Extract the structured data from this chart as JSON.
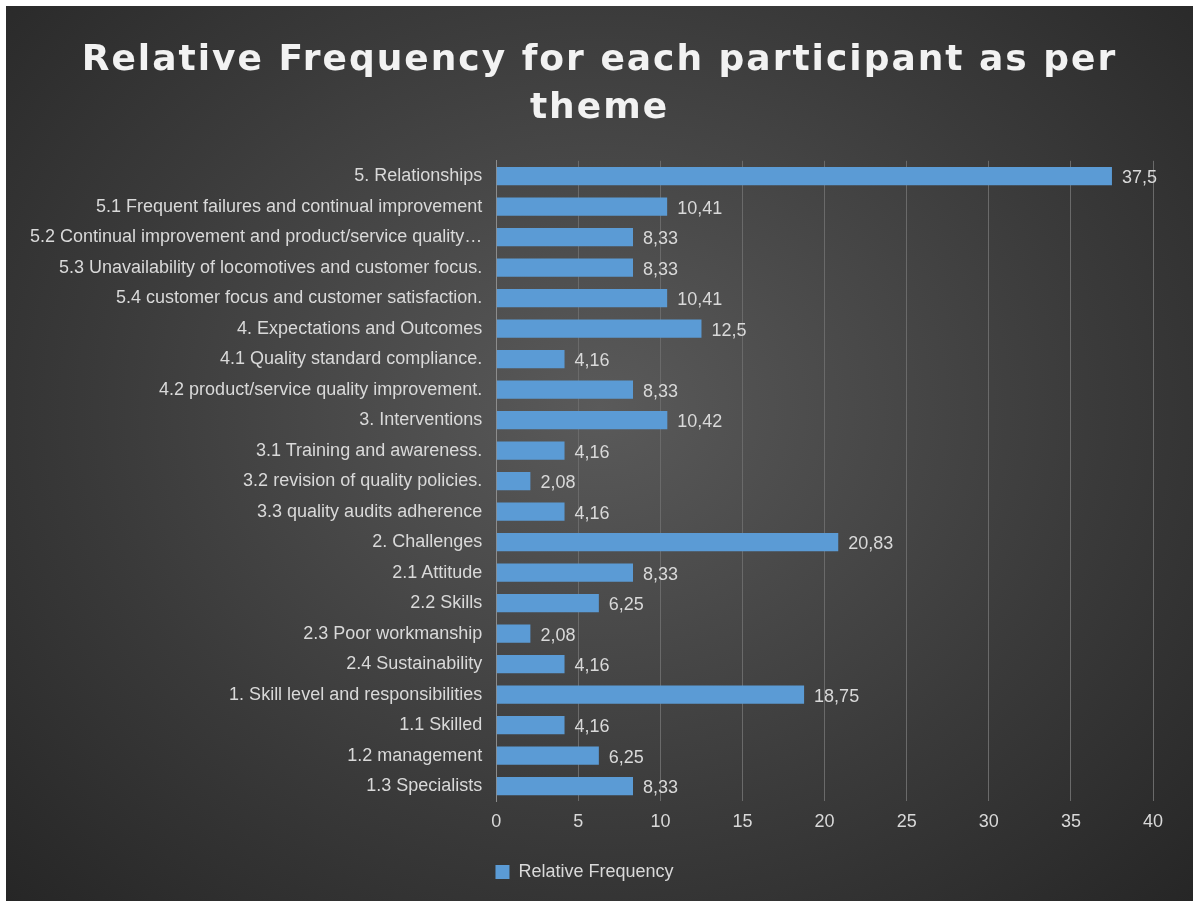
{
  "chart_data": {
    "type": "bar",
    "orientation": "horizontal",
    "title": "Relative Frequency for each participant as per theme",
    "categories": [
      "5. Relationships",
      "5.1 Frequent failures and continual improvement",
      "5.2 Continual improvement and product/service quality…",
      "5.3 Unavailability of locomotives and customer focus.",
      "5.4 customer focus and customer satisfaction.",
      "4. Expectations and Outcomes",
      "4.1 Quality standard compliance.",
      "4.2 product/service quality improvement.",
      "3. Interventions",
      "3.1 Training and awareness.",
      "3.2 revision of quality policies.",
      "3.3 quality audits adherence",
      "2. Challenges",
      "2.1 Attitude",
      "2.2 Skills",
      "2.3 Poor workmanship",
      "2.4 Sustainability",
      "1. Skill level and responsibilities",
      "1.1 Skilled",
      "1.2 management",
      "1.3 Specialists"
    ],
    "series": [
      {
        "name": "Relative Frequency",
        "color": "#5b9bd5",
        "values": [
          37.5,
          10.41,
          8.33,
          8.33,
          10.41,
          12.5,
          4.16,
          8.33,
          10.42,
          4.16,
          2.08,
          4.16,
          20.83,
          8.33,
          6.25,
          2.08,
          4.16,
          18.75,
          4.16,
          6.25,
          8.33
        ],
        "value_labels": [
          "37,5",
          "10,41",
          "8,33",
          "8,33",
          "10,41",
          "12,5",
          "4,16",
          "8,33",
          "10,42",
          "4,16",
          "2,08",
          "4,16",
          "20,83",
          "8,33",
          "6,25",
          "2,08",
          "4,16",
          "18,75",
          "4,16",
          "6,25",
          "8,33"
        ]
      }
    ],
    "xlim": [
      0,
      40
    ],
    "xticks": [
      0,
      5,
      10,
      15,
      20,
      25,
      30,
      35,
      40
    ],
    "grid": "x",
    "legend": "bottom"
  }
}
